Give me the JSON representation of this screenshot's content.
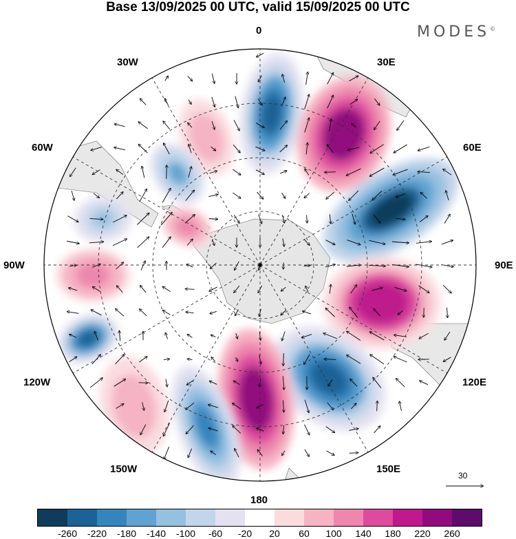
{
  "title": "Base 13/09/2025 00 UTC, valid 15/09/2025 00 UTC",
  "brand": "MODES",
  "brand_mark": "©",
  "longitude_labels": {
    "lon_0": "0",
    "lon_30e": "30E",
    "lon_60e": "60E",
    "lon_90e": "90E",
    "lon_120e": "120E",
    "lon_150e": "150E",
    "lon_180": "180",
    "lon_150w": "150W",
    "lon_120w": "120W",
    "lon_90w": "90W",
    "lon_60w": "60W",
    "lon_30w": "30W"
  },
  "reference_vector": {
    "label": "30"
  },
  "colorbar": {
    "colors": [
      "#0f3c5a",
      "#1b6296",
      "#3684bd",
      "#60a3d1",
      "#95c0e0",
      "#c3d5ea",
      "#e4e2f0",
      "#ffffff",
      "#fadcdf",
      "#f5b3c3",
      "#ee86ad",
      "#dd4b9e",
      "#be1a8c",
      "#920a7e",
      "#5e0b6c"
    ],
    "ticks": [
      "-260",
      "-220",
      "-180",
      "-140",
      "-100",
      "-60",
      "-20",
      "20",
      "60",
      "100",
      "140",
      "180",
      "220",
      "260"
    ]
  },
  "anomaly_centers": [
    {
      "sign": "negative",
      "level": -220,
      "region": "Atlantic sector near 0"
    },
    {
      "sign": "positive",
      "level": 260,
      "region": "South Atlantic / 30E"
    },
    {
      "sign": "negative",
      "level": -260,
      "region": "Indian Ocean 60E"
    },
    {
      "sign": "positive",
      "level": 220,
      "region": "Indian Ocean 90E"
    },
    {
      "sign": "negative",
      "level": -220,
      "region": "South of Australia 120E-150E"
    },
    {
      "sign": "positive",
      "level": 260,
      "region": "Ross Sea 180"
    },
    {
      "sign": "negative",
      "level": -180,
      "region": "Pacific 150W"
    },
    {
      "sign": "positive",
      "level": 100,
      "region": "Pacific 120W-150W"
    },
    {
      "sign": "negative",
      "level": -220,
      "region": "Pacific 120W"
    },
    {
      "sign": "positive",
      "level": 140,
      "region": "Pacific 90W"
    },
    {
      "sign": "negative",
      "level": -100,
      "region": "Southern Chile 60W-90W"
    },
    {
      "sign": "positive",
      "level": 140,
      "region": "Antarctic Peninsula"
    },
    {
      "sign": "positive",
      "level": 100,
      "region": "South Atlantic 30W"
    },
    {
      "sign": "negative",
      "level": -140,
      "region": "Drake Passage 45W"
    }
  ]
}
